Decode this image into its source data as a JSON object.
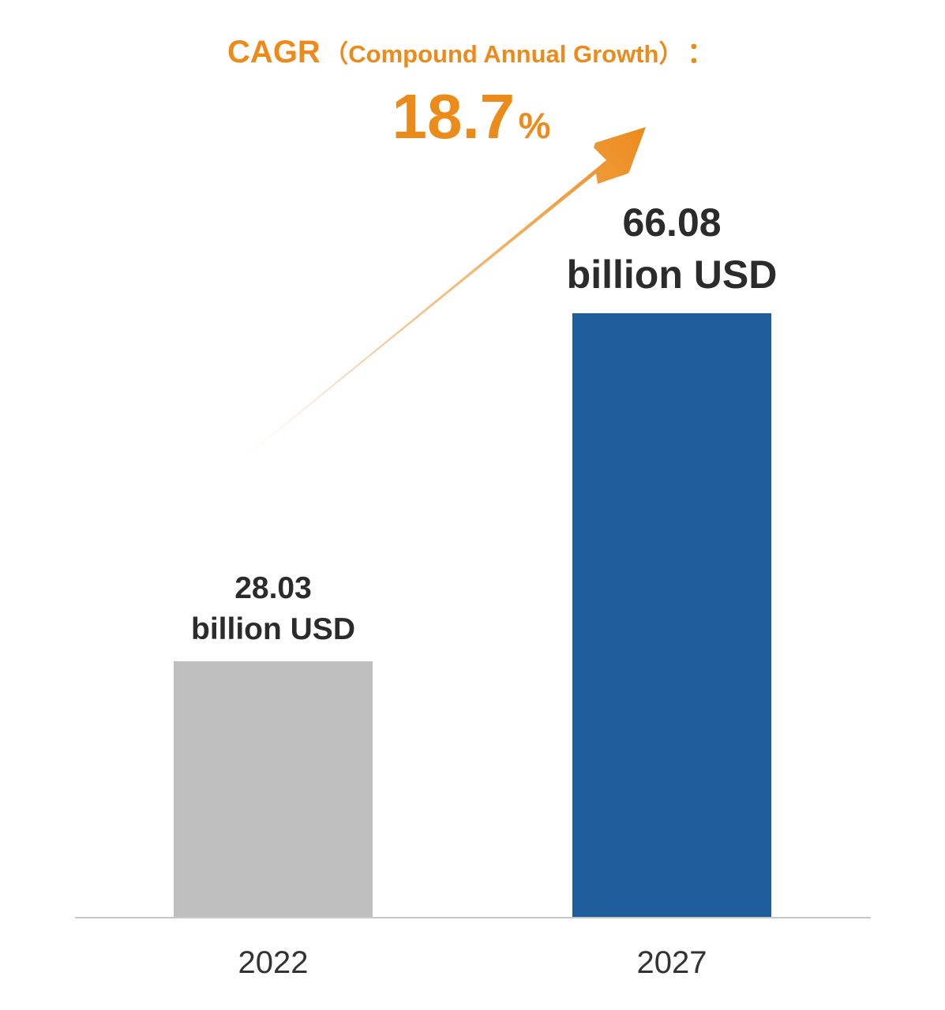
{
  "header": {
    "cagr_prefix": "CAGR",
    "cagr_paren": "（Compound Annual Growth）",
    "cagr_colon": "：",
    "cagr_value": "18.7",
    "cagr_unit": "%"
  },
  "colors": {
    "accent": "#ec8a1a",
    "bar_2022": "#bfbfbf",
    "bar_2027": "#1f5c9c",
    "axis": "#c8c8c8",
    "text": "#2b2b2b"
  },
  "chart_data": {
    "type": "bar",
    "categories": [
      "2022",
      "2027"
    ],
    "values": [
      28.03,
      66.08
    ],
    "value_labels": [
      {
        "number": "28.03",
        "unit": "billion USD"
      },
      {
        "number": "66.08",
        "unit": "billion USD"
      }
    ],
    "ylim": [
      0,
      66.08
    ],
    "grid": false,
    "title": "",
    "xlabel": "",
    "ylabel": ""
  }
}
